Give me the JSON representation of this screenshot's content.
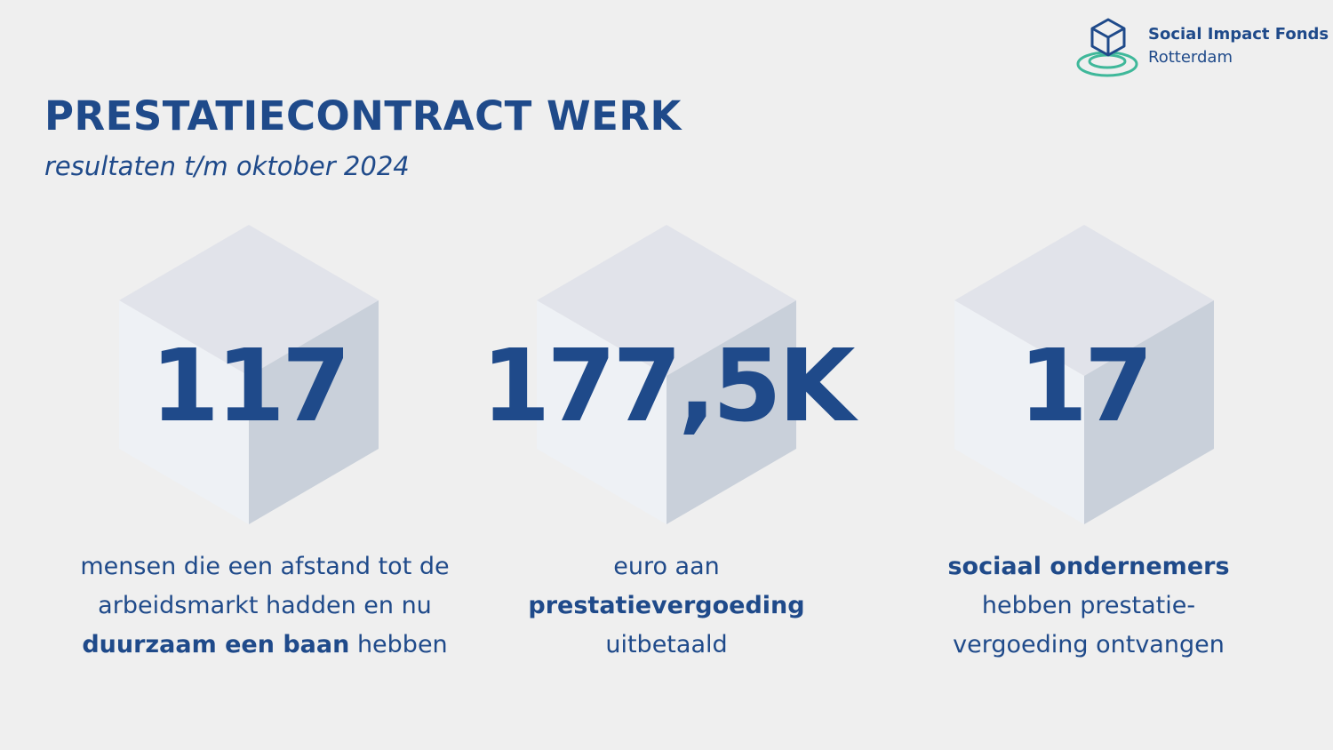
{
  "logo": {
    "name": "Social Impact Fonds",
    "city": "Rotterdam"
  },
  "header": {
    "title": "PRESTATIECONTRACT WERK",
    "subtitle": "resultaten t/m oktober 2024"
  },
  "stats": [
    {
      "value": "117",
      "lines": [
        [
          "mensen die een afstand tot de"
        ],
        [
          "arbeidsmarkt hadden en nu"
        ],
        [
          "duurzaam een baan",
          "hebben"
        ]
      ]
    },
    {
      "value": "177,5K",
      "lines": [
        [
          "euro aan"
        ],
        [
          "prestatievergoeding"
        ],
        [
          "uitbetaald"
        ]
      ]
    },
    {
      "value": "17",
      "lines": [
        [
          "sociaal ondernemers"
        ],
        [
          "hebben prestatie-"
        ],
        [
          "vergoeding ontvangen"
        ]
      ]
    }
  ]
}
